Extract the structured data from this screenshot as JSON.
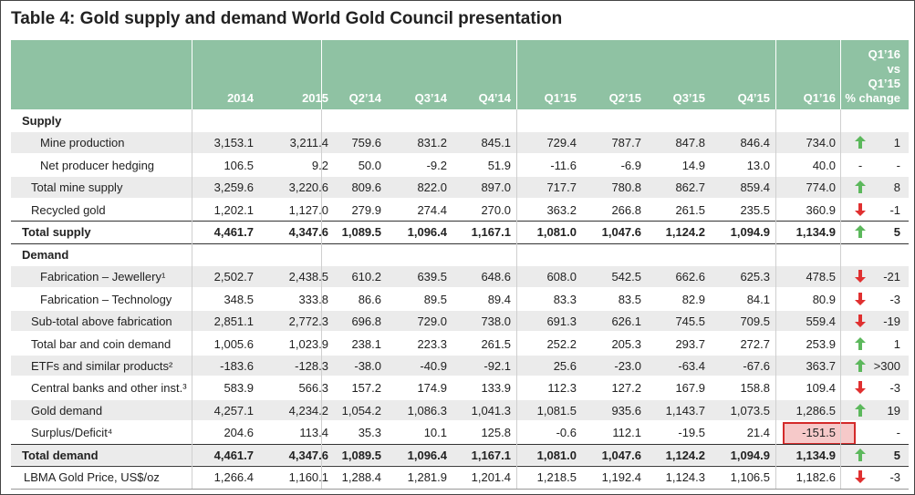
{
  "title": "Table 4: Gold supply and demand World Gold Council presentation",
  "table": {
    "columns": [
      "2014",
      "2015",
      "Q2’14",
      "Q3’14",
      "Q4’14",
      "Q1’15",
      "Q2’15",
      "Q3’15",
      "Q4’15",
      "Q1’16"
    ],
    "change_header": [
      "Q1’16",
      "vs",
      "Q1’15",
      "% change"
    ],
    "rows": [
      {
        "label": "Supply",
        "values": [],
        "arrow": null,
        "change": null
      },
      {
        "label": "Mine production",
        "values": [
          "3,153.1",
          "3,211.4",
          "759.6",
          "831.2",
          "845.1",
          "729.4",
          "787.7",
          "847.8",
          "846.4",
          "734.0"
        ],
        "arrow": "up",
        "change": "1"
      },
      {
        "label": "Net producer hedging",
        "values": [
          "106.5",
          "9.2",
          "50.0",
          "-9.2",
          "51.9",
          "-11.6",
          "-6.9",
          "14.9",
          "13.0",
          "40.0"
        ],
        "arrow": "-",
        "change": "-"
      },
      {
        "label": "Total mine supply",
        "values": [
          "3,259.6",
          "3,220.6",
          "809.6",
          "822.0",
          "897.0",
          "717.7",
          "780.8",
          "862.7",
          "859.4",
          "774.0"
        ],
        "arrow": "up",
        "change": "8"
      },
      {
        "label": "Recycled gold",
        "values": [
          "1,202.1",
          "1,127.0",
          "279.9",
          "274.4",
          "270.0",
          "363.2",
          "266.8",
          "261.5",
          "235.5",
          "360.9"
        ],
        "arrow": "down",
        "change": "-1"
      },
      {
        "label": "Total supply",
        "values": [
          "4,461.7",
          "4,347.6",
          "1,089.5",
          "1,096.4",
          "1,167.1",
          "1,081.0",
          "1,047.6",
          "1,124.2",
          "1,094.9",
          "1,134.9"
        ],
        "arrow": "up",
        "change": "5"
      },
      {
        "label": "Demand",
        "values": [],
        "arrow": null,
        "change": null
      },
      {
        "label": "Fabrication – Jewellery¹",
        "values": [
          "2,502.7",
          "2,438.5",
          "610.2",
          "639.5",
          "648.6",
          "608.0",
          "542.5",
          "662.6",
          "625.3",
          "478.5"
        ],
        "arrow": "down",
        "change": "-21"
      },
      {
        "label": "Fabrication – Technology",
        "values": [
          "348.5",
          "333.8",
          "86.6",
          "89.5",
          "89.4",
          "83.3",
          "83.5",
          "82.9",
          "84.1",
          "80.9"
        ],
        "arrow": "down",
        "change": "-3"
      },
      {
        "label": "Sub-total above fabrication",
        "values": [
          "2,851.1",
          "2,772.3",
          "696.8",
          "729.0",
          "738.0",
          "691.3",
          "626.1",
          "745.5",
          "709.5",
          "559.4"
        ],
        "arrow": "down",
        "change": "-19"
      },
      {
        "label": "Total bar and coin demand",
        "values": [
          "1,005.6",
          "1,023.9",
          "238.1",
          "223.3",
          "261.5",
          "252.2",
          "205.3",
          "293.7",
          "272.7",
          "253.9"
        ],
        "arrow": "up",
        "change": "1"
      },
      {
        "label": "ETFs and similar products²",
        "values": [
          "-183.6",
          "-128.3",
          "-38.0",
          "-40.9",
          "-92.1",
          "25.6",
          "-23.0",
          "-63.4",
          "-67.6",
          "363.7"
        ],
        "arrow": "up",
        "change": ">300"
      },
      {
        "label": "Central banks and other inst.³",
        "values": [
          "583.9",
          "566.3",
          "157.2",
          "174.9",
          "133.9",
          "112.3",
          "127.2",
          "167.9",
          "158.8",
          "109.4"
        ],
        "arrow": "down",
        "change": "-3"
      },
      {
        "label": "Gold demand",
        "values": [
          "4,257.1",
          "4,234.2",
          "1,054.2",
          "1,086.3",
          "1,041.3",
          "1,081.5",
          "935.6",
          "1,143.7",
          "1,073.5",
          "1,286.5"
        ],
        "arrow": "up",
        "change": "19"
      },
      {
        "label": "Surplus/Deficit⁴",
        "values": [
          "204.6",
          "113.4",
          "35.3",
          "10.1",
          "125.8",
          "-0.6",
          "112.1",
          "-19.5",
          "21.4",
          "-151.5"
        ],
        "arrow": null,
        "change": "-",
        "highlight": 9
      },
      {
        "label": "Total demand",
        "values": [
          "4,461.7",
          "4,347.6",
          "1,089.5",
          "1,096.4",
          "1,167.1",
          "1,081.0",
          "1,047.6",
          "1,124.2",
          "1,094.9",
          "1,134.9"
        ],
        "arrow": "up",
        "change": "5"
      },
      {
        "label": "LBMA Gold Price, US$/oz",
        "values": [
          "1,266.4",
          "1,160.1",
          "1,288.4",
          "1,281.9",
          "1,201.4",
          "1,218.5",
          "1,192.4",
          "1,124.3",
          "1,106.5",
          "1,182.6"
        ],
        "arrow": "down",
        "change": "-3"
      }
    ]
  }
}
